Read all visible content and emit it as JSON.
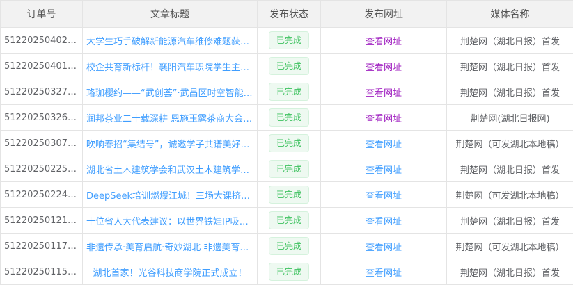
{
  "colors": {
    "link": "#409eff",
    "visited_link": "#a020c0",
    "status_green": "#3ec260"
  },
  "headers": [
    "订单号",
    "文章标题",
    "发布状态",
    "发布网址",
    "媒体名称"
  ],
  "rows": [
    {
      "order": "5122025040210…",
      "title": "大学生巧手破解新能源汽车维修难题获车…",
      "status": "已完成",
      "url": "查看网址",
      "visited": true,
      "media": "荆楚网（湖北日报）首发"
    },
    {
      "order": "5122025040109…",
      "title": "校企共育新标杆！襄阳汽车职院学生主讲…",
      "status": "已完成",
      "url": "查看网址",
      "visited": true,
      "media": "荆楚网（湖北日报）首发"
    },
    {
      "order": "5122025032711…",
      "title": "珞珈樱约——“武创荟”·武昌区时空智能科…",
      "status": "已完成",
      "url": "查看网址",
      "visited": true,
      "media": "荆楚网（湖北日报）首发"
    },
    {
      "order": "5122025032618…",
      "title": "润邦茶业二十载深耕 恩施玉露茶商大会…",
      "status": "已完成",
      "url": "查看网址",
      "visited": true,
      "media": "荆楚网(湖北日报网)"
    },
    {
      "order": "5122025030716…",
      "title": "吹响春招“集结号”，诚邀学子共谱美好黄陂",
      "status": "已完成",
      "url": "查看网址",
      "visited": false,
      "media": "荆楚网（可发湖北本地稿）",
      "center": true
    },
    {
      "order": "5122025022510…",
      "title": "湖北省土木建筑学会和武汉土木建筑学会…",
      "status": "已完成",
      "url": "查看网址",
      "visited": false,
      "media": "荆楚网（湖北日报）首发"
    },
    {
      "order": "5122025022419…",
      "title": "DeepSeek培训燃爆江城！三场大课挤进…",
      "status": "已完成",
      "url": "查看网址",
      "visited": false,
      "media": "荆楚网（可发湖北本地稿）"
    },
    {
      "order": "5122025012114…",
      "title": "十位省人大代表建议：以世界铁娃IP吸引…",
      "status": "已完成",
      "url": "查看网址",
      "visited": false,
      "media": "荆楚网（湖北日报）首发"
    },
    {
      "order": "5122025011717…",
      "title": "非遗传承·美育启航·奇妙湖北 非遗美育课…",
      "status": "已完成",
      "url": "查看网址",
      "visited": false,
      "media": "荆楚网（可发湖北本地稿）"
    },
    {
      "order": "5122025011511…",
      "title": "湖北首家！光谷科技商学院正式成立！",
      "status": "已完成",
      "url": "查看网址",
      "visited": false,
      "media": "荆楚网（湖北日报）首发",
      "center": true
    }
  ]
}
